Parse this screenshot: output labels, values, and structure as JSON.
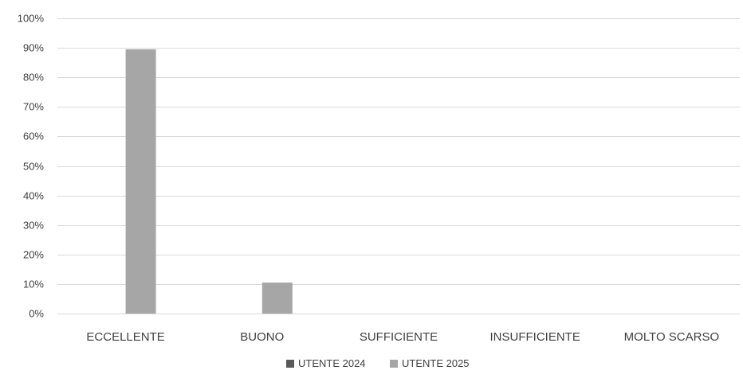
{
  "chart_data": {
    "type": "bar",
    "categories": [
      "ECCELLENTE",
      "BUONO",
      "SUFFICIENTE",
      "INSUFFICIENTE",
      "MOLTO SCARSO"
    ],
    "series": [
      {
        "name": "UTENTE 2024",
        "color": "#595959",
        "values": [
          0,
          0,
          0,
          0,
          0
        ]
      },
      {
        "name": "UTENTE 2025",
        "color": "#a6a6a6",
        "values": [
          89.5,
          10.5,
          0,
          0,
          0
        ]
      }
    ],
    "ylim": [
      0,
      100
    ],
    "yticks": [
      0,
      10,
      20,
      30,
      40,
      50,
      60,
      70,
      80,
      90,
      100
    ],
    "ytick_labels": [
      "0%",
      "10%",
      "20%",
      "30%",
      "40%",
      "50%",
      "60%",
      "70%",
      "80%",
      "90%",
      "100%"
    ],
    "grid": true,
    "legend_position": "bottom"
  }
}
